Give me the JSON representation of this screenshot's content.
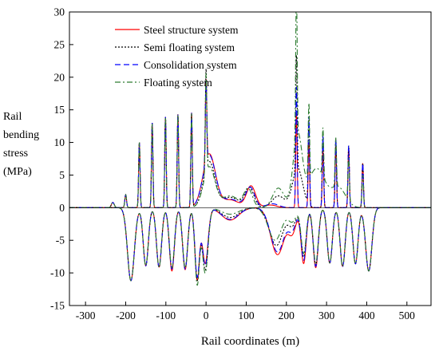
{
  "chart_data": {
    "type": "line",
    "title": "",
    "xlabel": "Rail coordinates (m)",
    "ylabel_lines": [
      "Rail",
      "bending",
      "stress",
      "(MPa)"
    ],
    "xlim": [
      -340,
      560
    ],
    "ylim": [
      -15,
      30
    ],
    "xticks": [
      -300,
      -200,
      -100,
      0,
      100,
      200,
      300,
      400,
      500
    ],
    "yticks": [
      -15,
      -10,
      -5,
      0,
      5,
      10,
      15,
      20,
      25,
      30
    ],
    "grid": false,
    "legend_position": "top-center",
    "series": [
      {
        "name": "Steel structure system",
        "color": "#ff0000",
        "dash": "solid",
        "pos_peaks": [
          {
            "x": -232,
            "y": 0.8,
            "w": 5
          },
          {
            "x": -200,
            "y": 2.0,
            "w": 3
          },
          {
            "x": -166,
            "y": 10,
            "w": 2.5
          },
          {
            "x": -134,
            "y": 13,
            "w": 2.5
          },
          {
            "x": -101,
            "y": 13.9,
            "w": 2.5
          },
          {
            "x": -70,
            "y": 14.3,
            "w": 2.5
          },
          {
            "x": -36,
            "y": 14.4,
            "w": 2.5
          },
          {
            "x": 0,
            "y": 12.5,
            "w": 2.5
          },
          {
            "x": 225,
            "y": 14.5,
            "w": 2.5
          },
          {
            "x": 256,
            "y": 10.0,
            "w": 2.5
          },
          {
            "x": 291,
            "y": 9.0,
            "w": 2.5
          },
          {
            "x": 323,
            "y": 9.5,
            "w": 2.5
          },
          {
            "x": 355,
            "y": 9.2,
            "w": 2.5
          },
          {
            "x": 390,
            "y": 6.8,
            "w": 2.5
          }
        ],
        "pos_bumps": [
          {
            "x": 8,
            "y": 8.2,
            "w": 22
          },
          {
            "x": 60,
            "y": 1.2,
            "w": 30
          },
          {
            "x": 112,
            "y": 3.3,
            "w": 16
          },
          {
            "x": 160,
            "y": 0.4,
            "w": 22
          }
        ],
        "neg_troughs": [
          {
            "x": -187,
            "y": -11.2,
            "w": 12
          },
          {
            "x": -150,
            "y": -8.9,
            "w": 9
          },
          {
            "x": -117,
            "y": -9.1,
            "w": 9
          },
          {
            "x": -85,
            "y": -9.7,
            "w": 9
          },
          {
            "x": -52,
            "y": -9.5,
            "w": 9
          },
          {
            "x": -22,
            "y": -11.0,
            "w": 8
          },
          {
            "x": 243,
            "y": -8.5,
            "w": 9
          },
          {
            "x": 273,
            "y": -9.2,
            "w": 9
          },
          {
            "x": 308,
            "y": -8.5,
            "w": 9
          },
          {
            "x": 340,
            "y": -9.0,
            "w": 9
          },
          {
            "x": 372,
            "y": -8.6,
            "w": 9
          },
          {
            "x": 405,
            "y": -9.7,
            "w": 11
          }
        ],
        "neg_bumps": [
          {
            "x": -2,
            "y": -8.5,
            "w": 10
          },
          {
            "x": 60,
            "y": -1.9,
            "w": 30
          },
          {
            "x": 178,
            "y": -7.2,
            "w": 24
          },
          {
            "x": 215,
            "y": -3.5,
            "w": 14
          }
        ]
      },
      {
        "name": "Semi floating system",
        "color": "#000000",
        "dash": "2,2",
        "pos_peaks": [
          {
            "x": -232,
            "y": 0.8,
            "w": 5
          },
          {
            "x": -200,
            "y": 2.0,
            "w": 3
          },
          {
            "x": -166,
            "y": 10,
            "w": 2.5
          },
          {
            "x": -134,
            "y": 13,
            "w": 2.5
          },
          {
            "x": -101,
            "y": 13.9,
            "w": 2.5
          },
          {
            "x": -70,
            "y": 14.3,
            "w": 2.5
          },
          {
            "x": -36,
            "y": 14.4,
            "w": 2.5
          },
          {
            "x": 0,
            "y": 15.3,
            "w": 2.5
          },
          {
            "x": 225,
            "y": 17.5,
            "w": 2.5
          },
          {
            "x": 256,
            "y": 13.5,
            "w": 2.5
          },
          {
            "x": 291,
            "y": 11.0,
            "w": 2.5
          },
          {
            "x": 323,
            "y": 10.5,
            "w": 2.5
          },
          {
            "x": 355,
            "y": 9.5,
            "w": 2.5
          },
          {
            "x": 390,
            "y": 6.8,
            "w": 2.5
          }
        ],
        "pos_bumps": [
          {
            "x": 8,
            "y": 7.0,
            "w": 20
          },
          {
            "x": 60,
            "y": 1.6,
            "w": 30
          },
          {
            "x": 108,
            "y": 3.0,
            "w": 16
          },
          {
            "x": 180,
            "y": 1.8,
            "w": 22
          },
          {
            "x": 228,
            "y": 6.0,
            "w": 18
          }
        ],
        "neg_troughs": [
          {
            "x": -187,
            "y": -11.2,
            "w": 12
          },
          {
            "x": -150,
            "y": -8.9,
            "w": 9
          },
          {
            "x": -117,
            "y": -9.1,
            "w": 9
          },
          {
            "x": -85,
            "y": -9.3,
            "w": 9
          },
          {
            "x": -52,
            "y": -9.3,
            "w": 9
          },
          {
            "x": -22,
            "y": -11.0,
            "w": 8
          },
          {
            "x": 243,
            "y": -7.5,
            "w": 9
          },
          {
            "x": 273,
            "y": -8.8,
            "w": 9
          },
          {
            "x": 308,
            "y": -8.5,
            "w": 9
          },
          {
            "x": 340,
            "y": -9.0,
            "w": 9
          },
          {
            "x": 372,
            "y": -8.6,
            "w": 9
          },
          {
            "x": 405,
            "y": -9.7,
            "w": 11
          }
        ],
        "neg_bumps": [
          {
            "x": -2,
            "y": -9.5,
            "w": 10
          },
          {
            "x": 60,
            "y": -1.5,
            "w": 30
          },
          {
            "x": 175,
            "y": -5.8,
            "w": 24
          },
          {
            "x": 215,
            "y": -2.5,
            "w": 14
          }
        ]
      },
      {
        "name": "Consolidation system",
        "color": "#0000ff",
        "dash": "7,4",
        "pos_peaks": [
          {
            "x": -232,
            "y": 0.8,
            "w": 5
          },
          {
            "x": -200,
            "y": 2.0,
            "w": 3
          },
          {
            "x": -166,
            "y": 10,
            "w": 2.5
          },
          {
            "x": -134,
            "y": 13,
            "w": 2.5
          },
          {
            "x": -101,
            "y": 13.9,
            "w": 2.5
          },
          {
            "x": -70,
            "y": 14.3,
            "w": 2.5
          },
          {
            "x": -36,
            "y": 14.4,
            "w": 2.5
          },
          {
            "x": 0,
            "y": 12.5,
            "w": 2.5
          },
          {
            "x": 225,
            "y": 18.5,
            "w": 2.5
          },
          {
            "x": 256,
            "y": 14.0,
            "w": 2.5
          },
          {
            "x": 291,
            "y": 11.0,
            "w": 2.5
          },
          {
            "x": 323,
            "y": 10.5,
            "w": 2.5
          },
          {
            "x": 355,
            "y": 9.5,
            "w": 2.5
          },
          {
            "x": 390,
            "y": 6.8,
            "w": 2.5
          }
        ],
        "pos_bumps": [
          {
            "x": 8,
            "y": 8.0,
            "w": 22
          },
          {
            "x": 60,
            "y": 1.3,
            "w": 30
          },
          {
            "x": 110,
            "y": 3.1,
            "w": 16
          },
          {
            "x": 165,
            "y": 0.6,
            "w": 22
          }
        ],
        "neg_troughs": [
          {
            "x": -187,
            "y": -11.2,
            "w": 12
          },
          {
            "x": -150,
            "y": -8.9,
            "w": 9
          },
          {
            "x": -117,
            "y": -9.1,
            "w": 9
          },
          {
            "x": -85,
            "y": -9.4,
            "w": 9
          },
          {
            "x": -52,
            "y": -9.4,
            "w": 9
          },
          {
            "x": -22,
            "y": -10.5,
            "w": 8
          },
          {
            "x": 243,
            "y": -8.0,
            "w": 9
          },
          {
            "x": 273,
            "y": -9.0,
            "w": 9
          },
          {
            "x": 308,
            "y": -8.5,
            "w": 9
          },
          {
            "x": 340,
            "y": -9.0,
            "w": 9
          },
          {
            "x": 372,
            "y": -8.6,
            "w": 9
          },
          {
            "x": 405,
            "y": -9.7,
            "w": 11
          }
        ],
        "neg_bumps": [
          {
            "x": -2,
            "y": -8.8,
            "w": 10
          },
          {
            "x": 60,
            "y": -1.8,
            "w": 30
          },
          {
            "x": 178,
            "y": -6.8,
            "w": 24
          },
          {
            "x": 215,
            "y": -3.0,
            "w": 14
          }
        ]
      },
      {
        "name": "Floating system",
        "color": "#2e7d32",
        "dash": "7,3,2,3",
        "pos_peaks": [
          {
            "x": -232,
            "y": 0.8,
            "w": 5
          },
          {
            "x": -200,
            "y": 2.0,
            "w": 3
          },
          {
            "x": -166,
            "y": 10,
            "w": 2.5
          },
          {
            "x": -134,
            "y": 13,
            "w": 2.5
          },
          {
            "x": -101,
            "y": 13.9,
            "w": 2.5
          },
          {
            "x": -70,
            "y": 14.3,
            "w": 2.5
          },
          {
            "x": -36,
            "y": 14.4,
            "w": 2.5
          },
          {
            "x": 0,
            "y": 15.3,
            "w": 2.5
          },
          {
            "x": 225,
            "y": 23.5,
            "w": 2.5
          },
          {
            "x": 256,
            "y": 11.5,
            "w": 2.5
          },
          {
            "x": 291,
            "y": 7.5,
            "w": 2.5
          },
          {
            "x": 323,
            "y": 7.5,
            "w": 2.5
          },
          {
            "x": 355,
            "y": 6.5,
            "w": 2.5
          },
          {
            "x": 390,
            "y": 5.0,
            "w": 2.5
          }
        ],
        "pos_bumps": [
          {
            "x": 8,
            "y": 6.2,
            "w": 20
          },
          {
            "x": 60,
            "y": 1.8,
            "w": 30
          },
          {
            "x": 105,
            "y": 2.8,
            "w": 15
          },
          {
            "x": 180,
            "y": 3.0,
            "w": 20
          },
          {
            "x": 228,
            "y": 11.0,
            "w": 16
          },
          {
            "x": 275,
            "y": 6.0,
            "w": 30
          },
          {
            "x": 330,
            "y": 3.0,
            "w": 25
          }
        ],
        "neg_troughs": [
          {
            "x": -187,
            "y": -11.2,
            "w": 12
          },
          {
            "x": -150,
            "y": -8.9,
            "w": 9
          },
          {
            "x": -117,
            "y": -9.1,
            "w": 9
          },
          {
            "x": -85,
            "y": -9.2,
            "w": 9
          },
          {
            "x": -52,
            "y": -9.2,
            "w": 9
          },
          {
            "x": -22,
            "y": -11.7,
            "w": 8
          },
          {
            "x": 243,
            "y": -7.0,
            "w": 9
          },
          {
            "x": 273,
            "y": -8.5,
            "w": 9
          },
          {
            "x": 308,
            "y": -8.5,
            "w": 9
          },
          {
            "x": 340,
            "y": -9.0,
            "w": 9
          },
          {
            "x": 372,
            "y": -8.6,
            "w": 9
          },
          {
            "x": 405,
            "y": -9.7,
            "w": 11
          }
        ],
        "neg_bumps": [
          {
            "x": -2,
            "y": -10.0,
            "w": 10
          },
          {
            "x": 60,
            "y": -1.0,
            "w": 30
          },
          {
            "x": 172,
            "y": -5.0,
            "w": 24
          },
          {
            "x": 215,
            "y": -2.0,
            "w": 14
          }
        ]
      }
    ]
  }
}
